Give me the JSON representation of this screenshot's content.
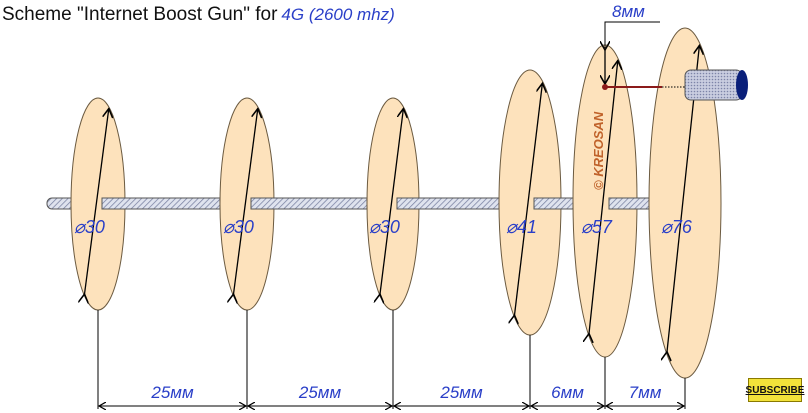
{
  "title": {
    "text": "Scheme \"Internet Boost Gun\" for",
    "band": "4G (2600 mhz)"
  },
  "discs": [
    {
      "diameter_label": "30"
    },
    {
      "diameter_label": "30"
    },
    {
      "diameter_label": "30"
    },
    {
      "diameter_label": "41"
    },
    {
      "diameter_label": "57"
    },
    {
      "diameter_label": "76"
    }
  ],
  "diameter_symbol": "⌀",
  "spacings": [
    "25мм",
    "25мм",
    "25мм",
    "6мм",
    "7мм"
  ],
  "feed_offset": "8мм",
  "watermark": "© KREOSAN",
  "subscribe_label": "SUBSCRIBE",
  "colors": {
    "disc_fill": "#fde2bc",
    "label": "#2a3fc8",
    "feed": "#8b1a1a",
    "rod_end": "#0a1f7a",
    "subscribe": "#f2e23a"
  }
}
